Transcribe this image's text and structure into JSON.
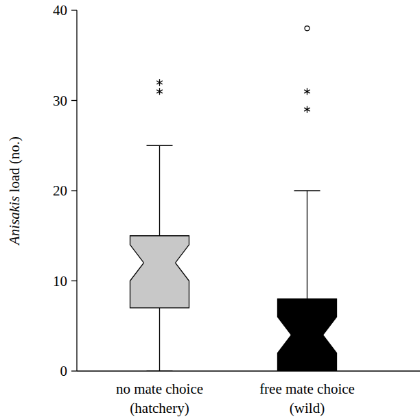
{
  "chart_data": {
    "type": "boxplot",
    "y_label": "Anisakis load (no.)",
    "categories": [
      "no mate choice (hatchery)",
      "free mate choice (wild)"
    ],
    "series": [
      {
        "name": "no mate choice (hatchery)",
        "color": "#c8c8c8",
        "whisker_low": 0,
        "q1": 7,
        "median": 12,
        "q3": 15,
        "whisker_high": 25,
        "notch_low": 10,
        "notch_high": 14,
        "outliers": [
          31,
          32
        ],
        "outlier_markers": [
          "asterisk",
          "asterisk"
        ]
      },
      {
        "name": "free mate choice (wild)",
        "color": "#000000",
        "whisker_low": 0,
        "q1": 0,
        "median": 4,
        "q3": 8,
        "whisker_high": 20,
        "notch_low": 2,
        "notch_high": 6,
        "outliers": [
          29,
          31,
          38
        ],
        "outlier_markers": [
          "asterisk",
          "asterisk",
          "circle"
        ]
      }
    ],
    "ylim": [
      0,
      40
    ],
    "yticks": [
      0,
      10,
      20,
      30,
      40
    ],
    "grid": false
  }
}
